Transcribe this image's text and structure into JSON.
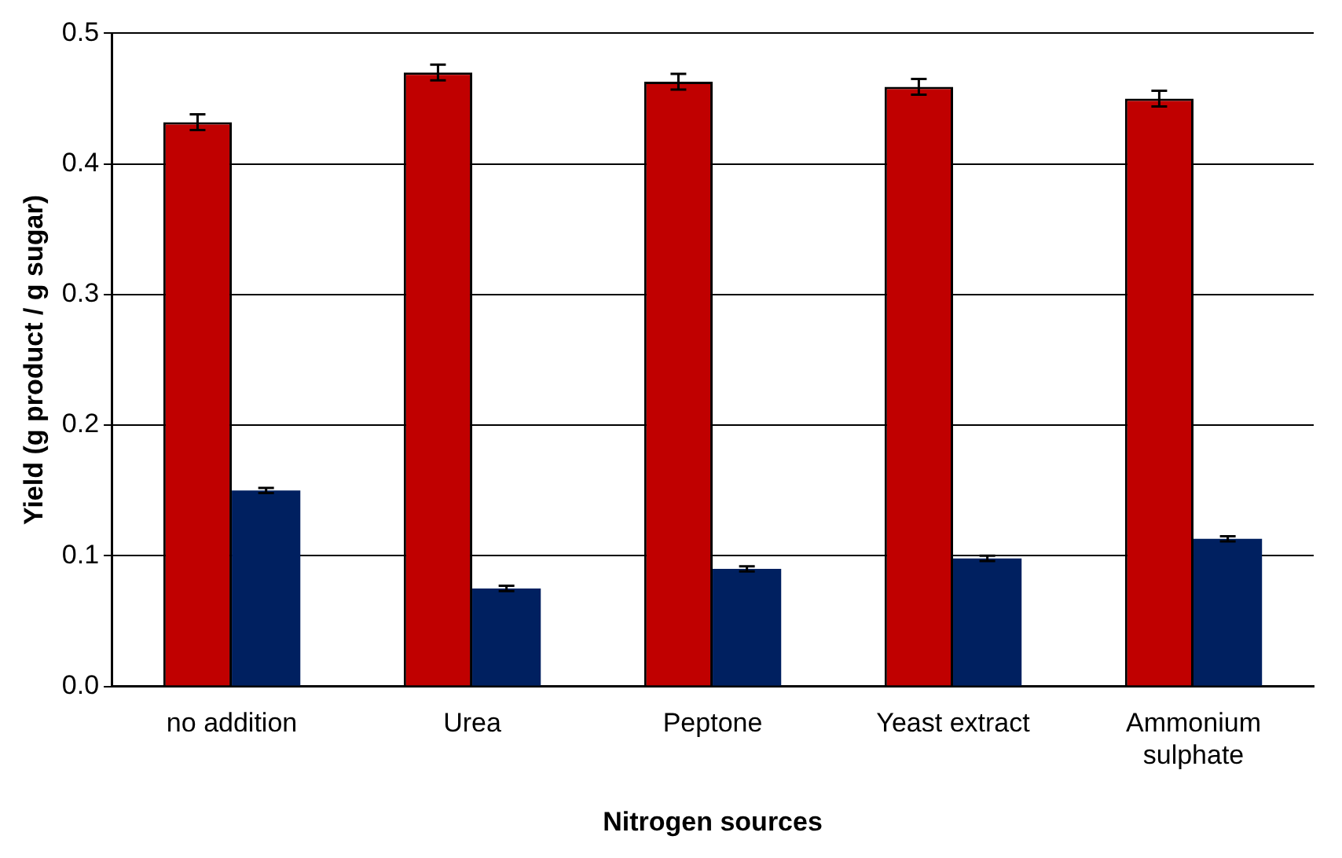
{
  "chart_data": {
    "type": "bar",
    "xlabel": "Nitrogen sources",
    "ylabel": "Yield (g product / g sugar)",
    "categories": [
      "no addition",
      "Urea",
      "Peptone",
      "Yeast extract",
      "Ammonium sulphate"
    ],
    "series": [
      {
        "color": "#c00000",
        "values": [
          0.432,
          0.47,
          0.463,
          0.459,
          0.45
        ],
        "errors": [
          0.006,
          0.006,
          0.006,
          0.006,
          0.006
        ]
      },
      {
        "color": "#002060",
        "values": [
          0.15,
          0.075,
          0.09,
          0.098,
          0.113
        ],
        "errors": [
          0.002,
          0.002,
          0.002,
          0.002,
          0.002
        ]
      }
    ],
    "ylim": [
      0,
      0.5
    ],
    "yticks": [
      {
        "value": 0,
        "label": "0.0"
      },
      {
        "value": 0.1,
        "label": "0.1"
      },
      {
        "value": 0.2,
        "label": "0.2"
      },
      {
        "value": 0.3,
        "label": "0.3"
      },
      {
        "value": 0.4,
        "label": "0.4"
      },
      {
        "value": 0.5,
        "label": "0.5"
      }
    ],
    "grid": "y",
    "legend": false
  }
}
